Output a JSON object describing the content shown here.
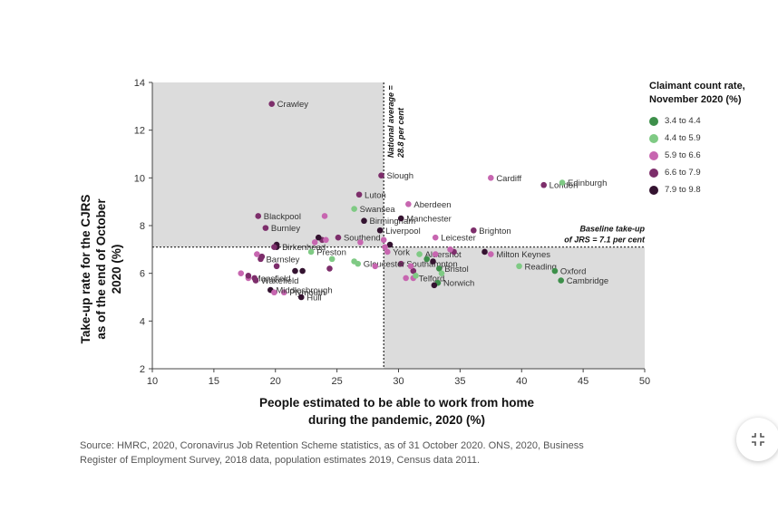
{
  "chart_data": {
    "type": "scatter",
    "xlabel": "People estimated to be able to work from home\nduring the pandemic,  2020 (%)",
    "ylabel": "Take-up rate for the CJRS\nas of the end of October\n2020 (%)",
    "xlim": [
      10,
      50
    ],
    "ylim": [
      2,
      14
    ],
    "x_ticks": [
      "10",
      "15",
      "20",
      "25",
      "30",
      "35",
      "40",
      "45",
      "50"
    ],
    "y_ticks": [
      "2",
      "4",
      "6",
      "8",
      "10",
      "12",
      "14"
    ],
    "reference_lines": {
      "vertical": {
        "x": 28.8,
        "label": "National average =\n28.8 per cent"
      },
      "horizontal": {
        "y": 7.1,
        "label": "Baseline take-up\nof JRS = 7.1 per cent"
      }
    },
    "shaded_quadrants": [
      "top-left",
      "bottom-right"
    ],
    "legend": {
      "title": "Claimant count rate,\nNovember 2020 (%)",
      "placement": "top-right",
      "items": [
        {
          "label": "3.4 to 4.4",
          "color": "#3d8f4a"
        },
        {
          "label": "4.4 to 5.9",
          "color": "#7fca84"
        },
        {
          "label": "5.9 to 6.6",
          "color": "#c766b0"
        },
        {
          "label": "6.6 to 7.9",
          "color": "#7d2e6b"
        },
        {
          "label": "7.9 to 9.8",
          "color": "#341330"
        }
      ]
    },
    "points": [
      {
        "label": "Crawley",
        "x": 19.7,
        "y": 13.1,
        "cls": 3
      },
      {
        "label": "Slough",
        "x": 28.6,
        "y": 10.1,
        "cls": 3
      },
      {
        "label": "Luton",
        "x": 26.8,
        "y": 9.3,
        "cls": 3
      },
      {
        "label": "Swansea",
        "x": 26.4,
        "y": 8.7,
        "cls": 1
      },
      {
        "label": "Birmingham",
        "x": 27.2,
        "y": 8.2,
        "cls": 4
      },
      {
        "label": "Liverpool",
        "x": 28.5,
        "y": 7.8,
        "cls": 4
      },
      {
        "label": "Manchester",
        "x": 30.2,
        "y": 8.3,
        "cls": 4
      },
      {
        "label": "Aberdeen",
        "x": 30.8,
        "y": 8.9,
        "cls": 2
      },
      {
        "label": "Blackpool",
        "x": 18.6,
        "y": 8.4,
        "cls": 3
      },
      {
        "label": "Burnley",
        "x": 19.2,
        "y": 7.9,
        "cls": 3
      },
      {
        "label": "Southend",
        "x": 25.1,
        "y": 7.5,
        "cls": 3
      },
      {
        "label": "Leicester",
        "x": 33.0,
        "y": 7.5,
        "cls": 2
      },
      {
        "label": "Brighton",
        "x": 36.1,
        "y": 7.8,
        "cls": 3
      },
      {
        "label": "Cardiff",
        "x": 37.5,
        "y": 10.0,
        "cls": 2
      },
      {
        "label": "London",
        "x": 41.8,
        "y": 9.7,
        "cls": 3
      },
      {
        "label": "Edinburgh",
        "x": 43.3,
        "y": 9.8,
        "cls": 1
      },
      {
        "label": "Birkenhead",
        "x": 20.1,
        "y": 7.1,
        "cls": 4
      },
      {
        "label": "Preston",
        "x": 22.9,
        "y": 6.9,
        "cls": 1
      },
      {
        "label": "York",
        "x": 29.1,
        "y": 6.9,
        "cls": 2
      },
      {
        "label": "Aldershot",
        "x": 31.7,
        "y": 6.8,
        "cls": 1
      },
      {
        "label": "Southampton",
        "x": 30.2,
        "y": 6.4,
        "cls": 3
      },
      {
        "label": "Bristol",
        "x": 33.3,
        "y": 6.2,
        "cls": 0
      },
      {
        "label": "Milton Keynes",
        "x": 37.5,
        "y": 6.8,
        "cls": 2
      },
      {
        "label": "Reading",
        "x": 39.8,
        "y": 6.3,
        "cls": 1
      },
      {
        "label": "Oxford",
        "x": 42.7,
        "y": 6.1,
        "cls": 0
      },
      {
        "label": "Cambridge",
        "x": 43.2,
        "y": 5.7,
        "cls": 0
      },
      {
        "label": "Barnsley",
        "x": 18.8,
        "y": 6.6,
        "cls": 3
      },
      {
        "label": "Gloucester",
        "x": 26.7,
        "y": 6.4,
        "cls": 1
      },
      {
        "label": "Telford",
        "x": 31.2,
        "y": 5.8,
        "cls": 2
      },
      {
        "label": "Norwich",
        "x": 33.2,
        "y": 5.6,
        "cls": 0
      },
      {
        "label": "Mansfield",
        "x": 17.8,
        "y": 5.8,
        "cls": 2
      },
      {
        "label": "Wakefield",
        "x": 18.4,
        "y": 5.7,
        "cls": 3
      },
      {
        "label": "Plymouth",
        "x": 20.7,
        "y": 5.2,
        "cls": 2
      },
      {
        "label": "Middlesbrough",
        "x": 19.6,
        "y": 5.3,
        "cls": 4
      },
      {
        "label": "Hull",
        "x": 22.1,
        "y": 5.0,
        "cls": 4
      },
      {
        "label": "",
        "x": 24.0,
        "y": 8.4,
        "cls": 2
      },
      {
        "label": "",
        "x": 23.8,
        "y": 7.4,
        "cls": 3
      },
      {
        "label": "",
        "x": 23.5,
        "y": 7.5,
        "cls": 4
      },
      {
        "label": "",
        "x": 24.1,
        "y": 7.4,
        "cls": 2
      },
      {
        "label": "",
        "x": 23.2,
        "y": 7.3,
        "cls": 2
      },
      {
        "label": "",
        "x": 26.9,
        "y": 7.3,
        "cls": 2
      },
      {
        "label": "",
        "x": 28.8,
        "y": 7.4,
        "cls": 2
      },
      {
        "label": "",
        "x": 29.3,
        "y": 7.2,
        "cls": 4
      },
      {
        "label": "",
        "x": 28.9,
        "y": 7.1,
        "cls": 2
      },
      {
        "label": "",
        "x": 20.1,
        "y": 7.2,
        "cls": 4
      },
      {
        "label": "",
        "x": 19.9,
        "y": 7.1,
        "cls": 3
      },
      {
        "label": "",
        "x": 18.5,
        "y": 6.8,
        "cls": 2
      },
      {
        "label": "",
        "x": 18.9,
        "y": 6.7,
        "cls": 3
      },
      {
        "label": "",
        "x": 20.1,
        "y": 6.3,
        "cls": 3
      },
      {
        "label": "",
        "x": 21.6,
        "y": 6.1,
        "cls": 4
      },
      {
        "label": "",
        "x": 22.2,
        "y": 6.1,
        "cls": 4
      },
      {
        "label": "",
        "x": 24.6,
        "y": 6.6,
        "cls": 1
      },
      {
        "label": "",
        "x": 24.4,
        "y": 6.2,
        "cls": 3
      },
      {
        "label": "",
        "x": 28.1,
        "y": 6.3,
        "cls": 2
      },
      {
        "label": "",
        "x": 26.4,
        "y": 6.5,
        "cls": 1
      },
      {
        "label": "",
        "x": 17.2,
        "y": 6.0,
        "cls": 2
      },
      {
        "label": "",
        "x": 17.8,
        "y": 5.9,
        "cls": 3
      },
      {
        "label": "",
        "x": 18.3,
        "y": 5.8,
        "cls": 3
      },
      {
        "label": "",
        "x": 19.9,
        "y": 5.2,
        "cls": 2
      },
      {
        "label": "",
        "x": 31.2,
        "y": 6.1,
        "cls": 3
      },
      {
        "label": "",
        "x": 31.0,
        "y": 6.3,
        "cls": 2
      },
      {
        "label": "",
        "x": 32.8,
        "y": 6.5,
        "cls": 4
      },
      {
        "label": "",
        "x": 33.0,
        "y": 6.8,
        "cls": 2
      },
      {
        "label": "",
        "x": 33.5,
        "y": 6.0,
        "cls": 1
      },
      {
        "label": "",
        "x": 32.3,
        "y": 6.6,
        "cls": 0
      },
      {
        "label": "",
        "x": 34.5,
        "y": 6.9,
        "cls": 3
      },
      {
        "label": "",
        "x": 34.2,
        "y": 7.0,
        "cls": 2
      },
      {
        "label": "",
        "x": 31.4,
        "y": 5.9,
        "cls": 1
      },
      {
        "label": "",
        "x": 32.9,
        "y": 5.5,
        "cls": 4
      },
      {
        "label": "",
        "x": 30.6,
        "y": 5.8,
        "cls": 2
      },
      {
        "label": "",
        "x": 37.0,
        "y": 6.9,
        "cls": 4
      }
    ]
  },
  "source": "Source: HMRC, 2020, Coronavirus Job Retention Scheme statistics, as of 31 October 2020. ONS, 2020, Business Register of Employment Survey, 2018 data, population estimates 2019, Census data 2011."
}
